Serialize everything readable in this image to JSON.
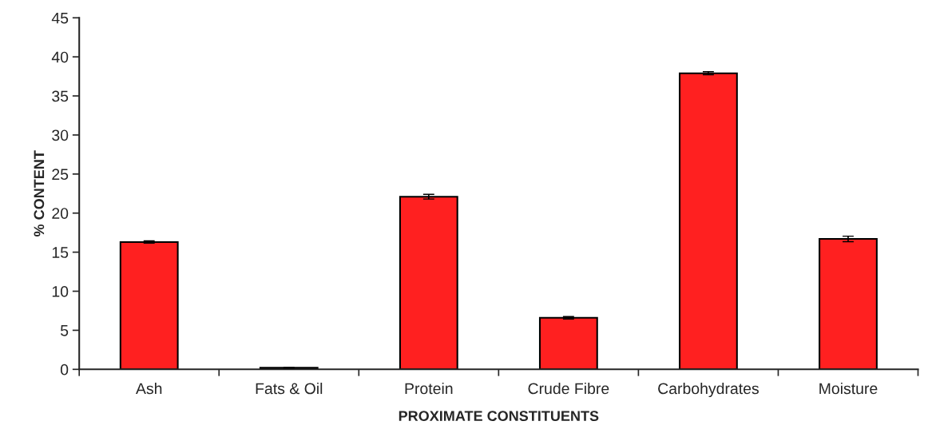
{
  "chart_data": {
    "type": "bar",
    "xlabel": "PROXIMATE CONSTITUENTS",
    "ylabel": "% CONTENT",
    "categories": [
      "Ash",
      "Fats & Oil",
      "Protein",
      "Crude Fibre",
      "Carbohydrates",
      "Moisture"
    ],
    "values": [
      16.3,
      0.2,
      22.1,
      6.6,
      37.9,
      16.7
    ],
    "errors": [
      0.15,
      0.05,
      0.3,
      0.15,
      0.2,
      0.35
    ],
    "color": "#ff2020",
    "ylim": [
      0,
      45
    ],
    "yticks": [
      0,
      5,
      10,
      15,
      20,
      25,
      30,
      35,
      40,
      45
    ],
    "grid": false,
    "legend": false
  }
}
